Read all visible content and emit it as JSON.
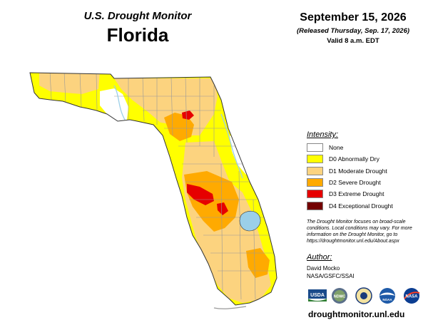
{
  "header": {
    "title_top": "U.S. Drought Monitor",
    "title_state": "Florida",
    "date": "September 15, 2026",
    "released": "(Released Thursday, Sep. 17, 2026)",
    "valid": "Valid 8 a.m. EDT"
  },
  "legend": {
    "title": "Intensity:",
    "items": [
      {
        "label": "None",
        "color": "#ffffff"
      },
      {
        "label": "D0 Abnormally Dry",
        "color": "#ffff00"
      },
      {
        "label": "D1 Moderate Drought",
        "color": "#fcd37f"
      },
      {
        "label": "D2 Severe Drought",
        "color": "#ffaa00"
      },
      {
        "label": "D3 Extreme Drought",
        "color": "#e60000"
      },
      {
        "label": "D4 Exceptional Drought",
        "color": "#730000"
      }
    ]
  },
  "note": "The Drought Monitor focuses on broad-scale conditions. Local conditions may vary. For more information on the Drought Monitor, go to https://droughtmonitor.unl.edu/About.aspx",
  "author": {
    "title": "Author:",
    "name": "David Mocko",
    "org": "NASA/GSFC/SSAI"
  },
  "logos": {
    "usda": "USDA",
    "ndmc": "NDMC",
    "noaa": "NOAA",
    "nasa": "NASA"
  },
  "website": "droughtmonitor.unl.edu",
  "colors": {
    "lake": "#9bcfe8",
    "county_line": "#999999",
    "border": "#333333"
  }
}
